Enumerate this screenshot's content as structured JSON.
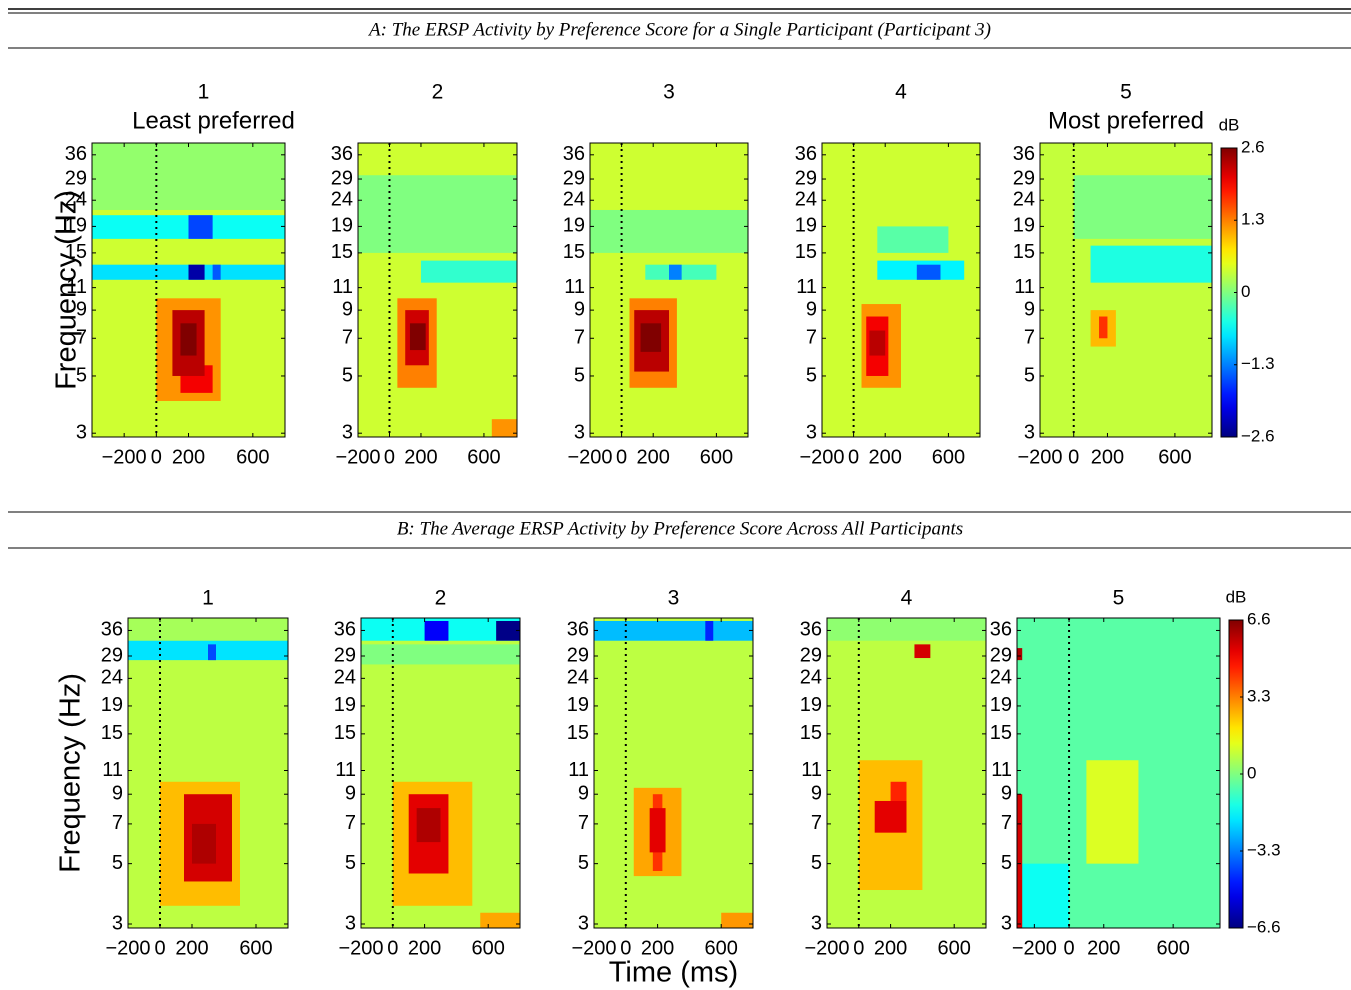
{
  "sections": [
    {
      "title": "A: The ERSP Activity by Preference Score for a Single Participant (Participant 3)"
    },
    {
      "title": "B: The Average ERSP Activity by Preference Score Across All Participants"
    }
  ],
  "chart_data": [
    {
      "type": "heatmap",
      "title": "1",
      "subtitle": "Least preferred",
      "ylabel": "Frequency (Hz)",
      "xlim": [
        -400,
        800
      ],
      "xticks": [
        {
          "value": -200,
          "label": "−200"
        },
        0,
        200,
        600
      ],
      "ylim": [
        2.9,
        40
      ],
      "yticks": [
        3,
        5,
        7,
        9,
        11,
        15,
        19,
        24,
        29,
        36
      ],
      "ylog": true,
      "clim": [
        -2.6,
        2.6
      ],
      "background": 0.4,
      "blobs": [
        {
          "t": [
            -400,
            800
          ],
          "f": [
            22,
            40
          ],
          "value": 0.1
        },
        {
          "t": [
            0,
            400
          ],
          "f": [
            4,
            10
          ],
          "value": 1.2
        },
        {
          "t": [
            -400,
            800
          ],
          "f": [
            17,
            21
          ],
          "value": -0.6
        },
        {
          "t": [
            200,
            350
          ],
          "f": [
            17,
            21
          ],
          "value": -1.6
        },
        {
          "t": [
            -400,
            800
          ],
          "f": [
            11.8,
            13.5
          ],
          "value": -0.8
        },
        {
          "t": [
            350,
            400
          ],
          "f": [
            11.8,
            13.5
          ],
          "value": -1.5
        },
        {
          "t": [
            200,
            300
          ],
          "f": [
            11.8,
            13.5
          ],
          "value": -2.4
        },
        {
          "t": [
            150,
            350
          ],
          "f": [
            4.3,
            5.5
          ],
          "value": 2.0
        },
        {
          "t": [
            100,
            300
          ],
          "f": [
            5,
            9
          ],
          "value": 2.3
        },
        {
          "t": [
            150,
            250
          ],
          "f": [
            6,
            8
          ],
          "value": 2.6
        }
      ]
    },
    {
      "type": "heatmap",
      "title": "2",
      "xlim": [
        -200,
        810
      ],
      "xticks": [
        {
          "value": -200,
          "label": "−200"
        },
        0,
        200,
        600
      ],
      "ylim": [
        2.9,
        40
      ],
      "yticks": [
        3,
        5,
        7,
        9,
        11,
        15,
        19,
        24,
        29,
        36
      ],
      "ylog": true,
      "clim": [
        -2.6,
        2.6
      ],
      "background": 0.4,
      "blobs": [
        {
          "t": [
            -200,
            810
          ],
          "f": [
            15,
            30
          ],
          "value": 0.0
        },
        {
          "t": [
            200,
            810
          ],
          "f": [
            11.5,
            14
          ],
          "value": -0.4
        },
        {
          "t": [
            50,
            300
          ],
          "f": [
            4.5,
            10
          ],
          "value": 1.3
        },
        {
          "t": [
            100,
            250
          ],
          "f": [
            5.5,
            9
          ],
          "value": 2.2
        },
        {
          "t": [
            130,
            230
          ],
          "f": [
            6.3,
            8
          ],
          "value": 2.6
        },
        {
          "t": [
            650,
            810
          ],
          "f": [
            2.9,
            3.4
          ],
          "value": 1.2
        }
      ]
    },
    {
      "type": "heatmap",
      "title": "3",
      "xlim": [
        -200,
        800
      ],
      "xticks": [
        {
          "value": -200,
          "label": "−200"
        },
        0,
        200,
        600
      ],
      "ylim": [
        2.9,
        40
      ],
      "yticks": [
        3,
        5,
        7,
        9,
        11,
        15,
        19,
        24,
        29,
        36
      ],
      "ylog": true,
      "clim": [
        -2.6,
        2.6
      ],
      "background": 0.4,
      "blobs": [
        {
          "t": [
            -200,
            800
          ],
          "f": [
            15,
            22
          ],
          "value": 0.0
        },
        {
          "t": [
            150,
            600
          ],
          "f": [
            11.8,
            13.5
          ],
          "value": -0.3
        },
        {
          "t": [
            300,
            380
          ],
          "f": [
            11.8,
            13.5
          ],
          "value": -1.3
        },
        {
          "t": [
            50,
            350
          ],
          "f": [
            4.5,
            10
          ],
          "value": 1.3
        },
        {
          "t": [
            80,
            300
          ],
          "f": [
            5.2,
            9
          ],
          "value": 2.3
        },
        {
          "t": [
            120,
            250
          ],
          "f": [
            6.2,
            8
          ],
          "value": 2.6
        }
      ]
    },
    {
      "type": "heatmap",
      "title": "4",
      "xlim": [
        -200,
        800
      ],
      "xticks": [
        {
          "value": -200,
          "label": "−200"
        },
        0,
        200,
        600
      ],
      "ylim": [
        2.9,
        40
      ],
      "yticks": [
        3,
        5,
        7,
        9,
        11,
        15,
        19,
        24,
        29,
        36
      ],
      "ylog": true,
      "clim": [
        -2.6,
        2.6
      ],
      "background": 0.4,
      "blobs": [
        {
          "t": [
            150,
            600
          ],
          "f": [
            15,
            19
          ],
          "value": -0.2
        },
        {
          "t": [
            150,
            700
          ],
          "f": [
            11.8,
            14
          ],
          "value": -0.7
        },
        {
          "t": [
            400,
            550
          ],
          "f": [
            11.8,
            13.5
          ],
          "value": -1.5
        },
        {
          "t": [
            50,
            300
          ],
          "f": [
            4.5,
            9.5
          ],
          "value": 1.2
        },
        {
          "t": [
            80,
            220
          ],
          "f": [
            5,
            8.5
          ],
          "value": 2.0
        },
        {
          "t": [
            100,
            200
          ],
          "f": [
            6,
            7.5
          ],
          "value": 2.3
        }
      ]
    },
    {
      "type": "heatmap",
      "title": "5",
      "subtitle": "Most preferred",
      "xlim": [
        -200,
        820
      ],
      "xticks": [
        {
          "value": -200,
          "label": "−200"
        },
        0,
        200,
        600
      ],
      "ylim": [
        2.9,
        40
      ],
      "yticks": [
        3,
        5,
        7,
        9,
        11,
        15,
        19,
        24,
        29,
        36
      ],
      "ylog": true,
      "clim": [
        -2.6,
        2.6
      ],
      "background": 0.35,
      "blobs": [
        {
          "t": [
            0,
            820
          ],
          "f": [
            17,
            30
          ],
          "value": 0.0
        },
        {
          "t": [
            100,
            820
          ],
          "f": [
            11.5,
            16
          ],
          "value": -0.5
        },
        {
          "t": [
            100,
            250
          ],
          "f": [
            6.5,
            9
          ],
          "value": 1.0
        },
        {
          "t": [
            150,
            200
          ],
          "f": [
            7,
            8.5
          ],
          "value": 1.7
        }
      ],
      "colorbar": {
        "label": "dB",
        "ticks": [
          2.6,
          1.3,
          0,
          {
            "value": -1.3,
            "label": "−1.3"
          },
          {
            "value": -2.6,
            "label": "−2.6"
          }
        ]
      }
    },
    {
      "type": "heatmap",
      "title": "1",
      "ylabel": "Frequency (Hz)",
      "xlim": [
        -200,
        800
      ],
      "xticks": [
        {
          "value": -200,
          "label": "−200"
        },
        0,
        200,
        600
      ],
      "ylim": [
        2.9,
        40
      ],
      "yticks": [
        3,
        5,
        7,
        9,
        11,
        15,
        19,
        24,
        29,
        36
      ],
      "ylog": true,
      "clim": [
        -6.6,
        6.6
      ],
      "background": 0.8,
      "blobs": [
        {
          "t": [
            -200,
            800
          ],
          "f": [
            33,
            40
          ],
          "value": 0.5
        },
        {
          "t": [
            -200,
            800
          ],
          "f": [
            28,
            33
          ],
          "value": -2.0
        },
        {
          "t": [
            300,
            350
          ],
          "f": [
            28,
            32
          ],
          "value": -4
        },
        {
          "t": [
            0,
            500
          ],
          "f": [
            3.5,
            10
          ],
          "value": 2.5
        },
        {
          "t": [
            150,
            450
          ],
          "f": [
            4.3,
            9
          ],
          "value": 5.5
        },
        {
          "t": [
            200,
            350
          ],
          "f": [
            5,
            7
          ],
          "value": 6.0
        }
      ]
    },
    {
      "type": "heatmap",
      "title": "2",
      "xlim": [
        -200,
        800
      ],
      "xticks": [
        {
          "value": -200,
          "label": "−200"
        },
        0,
        200,
        600
      ],
      "ylim": [
        2.9,
        40
      ],
      "yticks": [
        3,
        5,
        7,
        9,
        11,
        15,
        19,
        24,
        29,
        36
      ],
      "ylog": true,
      "clim": [
        -6.6,
        6.6
      ],
      "background": 0.8,
      "blobs": [
        {
          "t": [
            -200,
            800
          ],
          "f": [
            27,
            32
          ],
          "value": 0
        },
        {
          "t": [
            -200,
            800
          ],
          "f": [
            33,
            40
          ],
          "value": -1.5
        },
        {
          "t": [
            200,
            350
          ],
          "f": [
            33,
            39
          ],
          "value": -5
        },
        {
          "t": [
            650,
            800
          ],
          "f": [
            33,
            39
          ],
          "value": -6.5
        },
        {
          "t": [
            0,
            500
          ],
          "f": [
            3.5,
            10
          ],
          "value": 2.5
        },
        {
          "t": [
            100,
            350
          ],
          "f": [
            4.6,
            9
          ],
          "value": 5.3
        },
        {
          "t": [
            150,
            300
          ],
          "f": [
            6,
            8
          ],
          "value": 6.0
        },
        {
          "t": [
            550,
            800
          ],
          "f": [
            2.9,
            3.3
          ],
          "value": 2.8
        }
      ]
    },
    {
      "type": "heatmap",
      "title": "3",
      "xlabel": "Time (ms)",
      "xlim": [
        -200,
        800
      ],
      "xticks": [
        {
          "value": -200,
          "label": "−200"
        },
        0,
        200,
        600
      ],
      "ylim": [
        2.9,
        40
      ],
      "yticks": [
        3,
        5,
        7,
        9,
        11,
        15,
        19,
        24,
        29,
        36
      ],
      "ylog": true,
      "clim": [
        -6.6,
        6.6
      ],
      "background": 0.8,
      "blobs": [
        {
          "t": [
            -200,
            800
          ],
          "f": [
            33,
            39
          ],
          "value": -2.5
        },
        {
          "t": [
            500,
            550
          ],
          "f": [
            33,
            39
          ],
          "value": -4.5
        },
        {
          "t": [
            50,
            350
          ],
          "f": [
            4.5,
            9.5
          ],
          "value": 2.8
        },
        {
          "t": [
            170,
            230
          ],
          "f": [
            4.7,
            9
          ],
          "value": 4.3
        },
        {
          "t": [
            150,
            250
          ],
          "f": [
            5.5,
            8
          ],
          "value": 5.3
        },
        {
          "t": [
            600,
            800
          ],
          "f": [
            2.9,
            3.3
          ],
          "value": 3
        }
      ]
    },
    {
      "type": "heatmap",
      "title": "4",
      "xlim": [
        -200,
        800
      ],
      "xticks": [
        {
          "value": -200,
          "label": "−200"
        },
        0,
        200,
        600
      ],
      "ylim": [
        2.9,
        40
      ],
      "yticks": [
        3,
        5,
        7,
        9,
        11,
        15,
        19,
        24,
        29,
        36
      ],
      "ylog": true,
      "clim": [
        -6.6,
        6.6
      ],
      "background": 0.8,
      "blobs": [
        {
          "t": [
            -200,
            800
          ],
          "f": [
            33,
            40
          ],
          "value": 0.2
        },
        {
          "t": [
            350,
            450
          ],
          "f": [
            28.5,
            32
          ],
          "value": 5.5
        },
        {
          "t": [
            0,
            400
          ],
          "f": [
            4,
            12
          ],
          "value": 2.5
        },
        {
          "t": [
            200,
            300
          ],
          "f": [
            7.5,
            10
          ],
          "value": 4.5
        },
        {
          "t": [
            100,
            300
          ],
          "f": [
            6.5,
            8.5
          ],
          "value": 5.3
        }
      ]
    },
    {
      "type": "heatmap",
      "title": "5",
      "xlim": [
        -300,
        870
      ],
      "xticks": [
        {
          "value": -200,
          "label": "−200"
        },
        0,
        200,
        600
      ],
      "ylim": [
        2.9,
        40
      ],
      "yticks": [
        3,
        5,
        7,
        9,
        11,
        15,
        19,
        24,
        29,
        36
      ],
      "ylog": true,
      "clim": [
        -6.6,
        6.6
      ],
      "background": -0.5,
      "blobs": [
        {
          "t": [
            100,
            400
          ],
          "f": [
            5,
            12
          ],
          "value": 1.2
        },
        {
          "t": [
            -280,
            0
          ],
          "f": [
            2.9,
            5
          ],
          "value": -1.5
        },
        {
          "t": [
            -300,
            -270
          ],
          "f": [
            2.9,
            9
          ],
          "value": 5.5
        },
        {
          "t": [
            -300,
            -270
          ],
          "f": [
            28,
            31
          ],
          "value": 6.0
        }
      ],
      "colorbar": {
        "label": "dB",
        "ticks": [
          6.6,
          3.3,
          0,
          {
            "value": -3.3,
            "label": "−3.3"
          },
          {
            "value": -6.6,
            "label": "−6.6"
          }
        ]
      }
    }
  ]
}
